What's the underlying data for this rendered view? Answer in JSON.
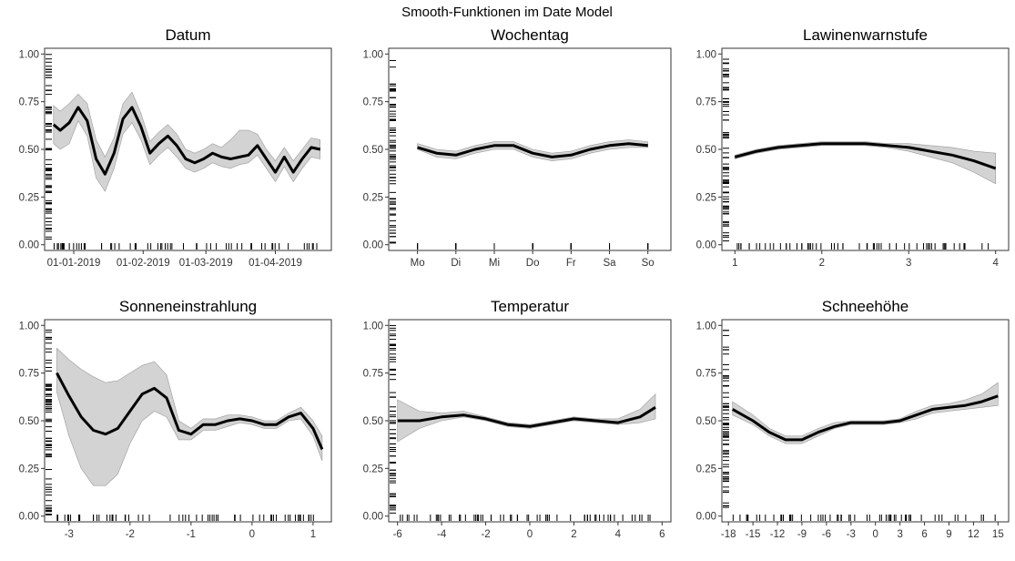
{
  "figure_title": "Smooth-Funktionen im Date Model",
  "chart_data": [
    {
      "type": "line",
      "title": "Datum",
      "x_type": "date",
      "xlim": [
        "2018-12-19",
        "2019-04-26"
      ],
      "ylim": [
        0,
        1
      ],
      "x_ticks": [
        {
          "value": "2019-01-01",
          "label": "01-01-2019"
        },
        {
          "value": "2019-02-01",
          "label": "01-02-2019"
        },
        {
          "value": "2019-03-01",
          "label": "01-03-2019"
        },
        {
          "value": "2019-04-01",
          "label": "01-04-2019"
        }
      ],
      "y_ticks": [
        0,
        0.25,
        0.5,
        0.75,
        1
      ],
      "y_tick_labels": [
        "0.00",
        "0.25",
        "0.50",
        "0.75",
        "1.00"
      ],
      "series": [
        {
          "x": [
            "2018-12-23",
            "2018-12-26",
            "2018-12-30",
            "2019-01-03",
            "2019-01-07",
            "2019-01-11",
            "2019-01-15",
            "2019-01-19",
            "2019-01-23",
            "2019-01-27",
            "2019-01-31",
            "2019-02-04",
            "2019-02-08",
            "2019-02-12",
            "2019-02-16",
            "2019-02-20",
            "2019-02-24",
            "2019-02-28",
            "2019-03-04",
            "2019-03-08",
            "2019-03-12",
            "2019-03-16",
            "2019-03-20",
            "2019-03-24",
            "2019-03-28",
            "2019-04-01",
            "2019-04-05",
            "2019-04-09",
            "2019-04-13",
            "2019-04-17",
            "2019-04-21"
          ],
          "y": [
            0.63,
            0.6,
            0.64,
            0.72,
            0.65,
            0.45,
            0.37,
            0.48,
            0.66,
            0.72,
            0.62,
            0.48,
            0.53,
            0.57,
            0.52,
            0.45,
            0.43,
            0.45,
            0.48,
            0.46,
            0.45,
            0.46,
            0.47,
            0.52,
            0.45,
            0.38,
            0.46,
            0.38,
            0.45,
            0.51,
            0.5
          ],
          "lower": [
            0.53,
            0.5,
            0.53,
            0.65,
            0.57,
            0.35,
            0.28,
            0.4,
            0.58,
            0.64,
            0.55,
            0.42,
            0.47,
            0.51,
            0.46,
            0.4,
            0.38,
            0.4,
            0.43,
            0.41,
            0.4,
            0.42,
            0.43,
            0.47,
            0.4,
            0.33,
            0.41,
            0.33,
            0.4,
            0.46,
            0.45
          ],
          "upper": [
            0.73,
            0.7,
            0.74,
            0.79,
            0.74,
            0.55,
            0.46,
            0.56,
            0.74,
            0.8,
            0.69,
            0.54,
            0.59,
            0.63,
            0.58,
            0.5,
            0.48,
            0.5,
            0.53,
            0.51,
            0.55,
            0.6,
            0.6,
            0.58,
            0.5,
            0.44,
            0.51,
            0.44,
            0.5,
            0.56,
            0.55
          ]
        }
      ]
    },
    {
      "type": "line",
      "title": "Wochentag",
      "x_type": "category",
      "categories": [
        "Mo",
        "Di",
        "Mi",
        "Do",
        "Fr",
        "Sa",
        "So"
      ],
      "xlim": [
        0.25,
        7.6
      ],
      "ylim": [
        0,
        1
      ],
      "y_ticks": [
        0,
        0.25,
        0.5,
        0.75,
        1
      ],
      "y_tick_labels": [
        "0.00",
        "0.25",
        "0.50",
        "0.75",
        "1.00"
      ],
      "series": [
        {
          "x": [
            1,
            1.5,
            2,
            2.5,
            3,
            3.5,
            4,
            4.5,
            5,
            5.5,
            6,
            6.5,
            7
          ],
          "y": [
            0.51,
            0.48,
            0.47,
            0.5,
            0.52,
            0.52,
            0.48,
            0.46,
            0.47,
            0.5,
            0.52,
            0.53,
            0.52
          ],
          "lower": [
            0.5,
            0.46,
            0.45,
            0.48,
            0.5,
            0.5,
            0.46,
            0.44,
            0.45,
            0.48,
            0.5,
            0.51,
            0.51
          ],
          "upper": [
            0.53,
            0.5,
            0.49,
            0.52,
            0.54,
            0.54,
            0.5,
            0.48,
            0.49,
            0.52,
            0.54,
            0.55,
            0.54
          ]
        }
      ]
    },
    {
      "type": "line",
      "title": "Lawinenwarnstufe",
      "x_type": "number",
      "xlim": [
        0.85,
        4.15
      ],
      "ylim": [
        0,
        1
      ],
      "x_ticks": [
        1,
        2,
        3,
        4
      ],
      "y_ticks": [
        0,
        0.25,
        0.5,
        0.75,
        1
      ],
      "y_tick_labels": [
        "0.00",
        "0.25",
        "0.50",
        "0.75",
        "1.00"
      ],
      "series": [
        {
          "x": [
            1,
            1.25,
            1.5,
            1.75,
            2,
            2.25,
            2.5,
            2.75,
            3,
            3.25,
            3.5,
            3.75,
            4
          ],
          "y": [
            0.46,
            0.49,
            0.51,
            0.52,
            0.53,
            0.53,
            0.53,
            0.52,
            0.51,
            0.49,
            0.47,
            0.44,
            0.4
          ],
          "lower": [
            0.45,
            0.48,
            0.5,
            0.51,
            0.52,
            0.52,
            0.52,
            0.51,
            0.49,
            0.46,
            0.43,
            0.38,
            0.32
          ],
          "upper": [
            0.47,
            0.5,
            0.52,
            0.53,
            0.54,
            0.54,
            0.54,
            0.53,
            0.53,
            0.52,
            0.51,
            0.49,
            0.48
          ]
        }
      ]
    },
    {
      "type": "line",
      "title": "Sonneneinstrahlung",
      "x_type": "number",
      "xlim": [
        -3.4,
        1.3
      ],
      "ylim": [
        0,
        1
      ],
      "x_ticks": [
        -3,
        -2,
        -1,
        0,
        1
      ],
      "y_ticks": [
        0,
        0.25,
        0.5,
        0.75,
        1
      ],
      "y_tick_labels": [
        "0.00",
        "0.25",
        "0.50",
        "0.75",
        "1.00"
      ],
      "series": [
        {
          "x": [
            -3.2,
            -3.0,
            -2.8,
            -2.6,
            -2.4,
            -2.2,
            -2.0,
            -1.8,
            -1.6,
            -1.4,
            -1.2,
            -1.0,
            -0.8,
            -0.6,
            -0.4,
            -0.2,
            0.0,
            0.2,
            0.4,
            0.6,
            0.8,
            1.0,
            1.15
          ],
          "y": [
            0.75,
            0.63,
            0.52,
            0.45,
            0.43,
            0.46,
            0.55,
            0.64,
            0.67,
            0.62,
            0.45,
            0.43,
            0.48,
            0.48,
            0.5,
            0.51,
            0.5,
            0.48,
            0.48,
            0.52,
            0.54,
            0.46,
            0.35
          ],
          "lower": [
            0.65,
            0.42,
            0.25,
            0.16,
            0.16,
            0.22,
            0.38,
            0.5,
            0.55,
            0.52,
            0.4,
            0.4,
            0.45,
            0.45,
            0.47,
            0.49,
            0.48,
            0.46,
            0.46,
            0.5,
            0.51,
            0.42,
            0.29
          ],
          "upper": [
            0.88,
            0.82,
            0.77,
            0.73,
            0.7,
            0.71,
            0.75,
            0.79,
            0.81,
            0.74,
            0.5,
            0.46,
            0.51,
            0.51,
            0.53,
            0.53,
            0.52,
            0.5,
            0.5,
            0.54,
            0.57,
            0.5,
            0.42
          ]
        }
      ]
    },
    {
      "type": "line",
      "title": "Temperatur",
      "x_type": "number",
      "xlim": [
        -6.4,
        6.4
      ],
      "ylim": [
        0,
        1
      ],
      "x_ticks": [
        -6,
        -4,
        -2,
        0,
        2,
        4,
        6
      ],
      "y_ticks": [
        0,
        0.25,
        0.5,
        0.75,
        1
      ],
      "y_tick_labels": [
        "0.00",
        "0.25",
        "0.50",
        "0.75",
        "1.00"
      ],
      "series": [
        {
          "x": [
            -6,
            -5,
            -4,
            -3,
            -2,
            -1,
            0,
            1,
            2,
            3,
            4,
            5,
            5.7
          ],
          "y": [
            0.5,
            0.5,
            0.52,
            0.53,
            0.51,
            0.48,
            0.47,
            0.49,
            0.51,
            0.5,
            0.49,
            0.52,
            0.57
          ],
          "lower": [
            0.39,
            0.46,
            0.5,
            0.52,
            0.5,
            0.47,
            0.46,
            0.48,
            0.5,
            0.49,
            0.48,
            0.49,
            0.51
          ],
          "upper": [
            0.61,
            0.55,
            0.54,
            0.55,
            0.52,
            0.49,
            0.48,
            0.5,
            0.52,
            0.51,
            0.51,
            0.56,
            0.64
          ]
        }
      ]
    },
    {
      "type": "line",
      "title": "Schneehöhe",
      "x_type": "number",
      "xlim": [
        -18.8,
        16.3
      ],
      "ylim": [
        0,
        1
      ],
      "x_ticks": [
        -18,
        -15,
        -12,
        -9,
        -6,
        -3,
        0,
        3,
        6,
        9,
        12,
        15
      ],
      "y_ticks": [
        0,
        0.25,
        0.5,
        0.75,
        1
      ],
      "y_tick_labels": [
        "0.00",
        "0.25",
        "0.50",
        "0.75",
        "1.00"
      ],
      "series": [
        {
          "x": [
            -17.5,
            -15,
            -13,
            -11,
            -9,
            -7,
            -5,
            -3,
            -1,
            1,
            3,
            5,
            7,
            9,
            11,
            13,
            15
          ],
          "y": [
            0.56,
            0.5,
            0.44,
            0.4,
            0.4,
            0.44,
            0.47,
            0.49,
            0.49,
            0.49,
            0.5,
            0.53,
            0.56,
            0.57,
            0.58,
            0.6,
            0.63
          ],
          "lower": [
            0.53,
            0.48,
            0.42,
            0.38,
            0.38,
            0.42,
            0.46,
            0.48,
            0.48,
            0.48,
            0.49,
            0.51,
            0.54,
            0.55,
            0.56,
            0.57,
            0.58
          ],
          "upper": [
            0.6,
            0.53,
            0.46,
            0.42,
            0.42,
            0.46,
            0.49,
            0.5,
            0.5,
            0.5,
            0.51,
            0.55,
            0.58,
            0.59,
            0.61,
            0.64,
            0.7
          ]
        }
      ]
    }
  ]
}
